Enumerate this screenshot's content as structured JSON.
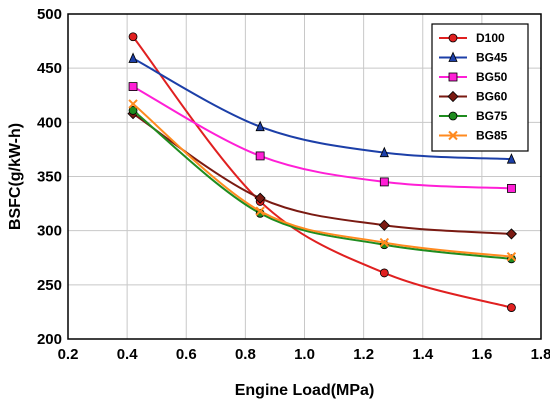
{
  "chart_data": {
    "type": "line",
    "xlabel": "Engine Load(MPa)",
    "ylabel": "BSFC(g/kW-h)",
    "xlim": [
      0.2,
      1.8
    ],
    "ylim": [
      200,
      500
    ],
    "xticks": [
      "0.2",
      "0.4",
      "0.6",
      "0.8",
      "1.0",
      "1.2",
      "1.4",
      "1.6",
      "1.8"
    ],
    "yticks": [
      "200",
      "250",
      "300",
      "350",
      "400",
      "450",
      "500"
    ],
    "x": [
      0.42,
      0.85,
      1.27,
      1.7
    ],
    "grid": true,
    "legend_position": "top-right",
    "series": [
      {
        "name": "D100",
        "values": [
          479,
          327,
          261,
          229
        ],
        "color": "#e02020",
        "marker": "circle"
      },
      {
        "name": "BG45",
        "values": [
          459,
          396,
          372,
          366
        ],
        "color": "#1c3fa8",
        "marker": "triangle"
      },
      {
        "name": "BG50",
        "values": [
          433,
          369,
          345,
          339
        ],
        "color": "#ff1fd6",
        "marker": "square"
      },
      {
        "name": "BG60",
        "values": [
          408,
          330,
          305,
          297
        ],
        "color": "#7a1a12",
        "marker": "diamond"
      },
      {
        "name": "BG75",
        "values": [
          411,
          316,
          287,
          274
        ],
        "color": "#1f8c1f",
        "marker": "circle"
      },
      {
        "name": "BG85",
        "values": [
          417,
          318,
          289,
          276
        ],
        "color": "#ff8a1f",
        "marker": "x"
      }
    ]
  }
}
